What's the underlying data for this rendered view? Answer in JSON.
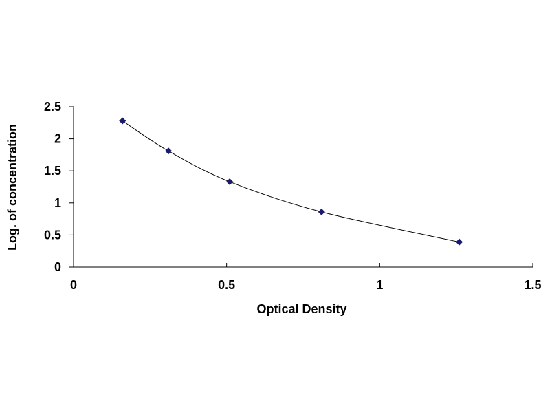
{
  "chart_data": {
    "type": "scatter",
    "title": "",
    "xlabel": "Optical Density",
    "ylabel": "Log. of concentration",
    "xlim": [
      0,
      1.5
    ],
    "ylim": [
      0,
      2.5
    ],
    "x_ticks": [
      0,
      0.5,
      1,
      1.5
    ],
    "x_tick_labels": [
      "0",
      "0.5",
      "1",
      "1.5"
    ],
    "y_ticks": [
      0,
      0.5,
      1,
      1.5,
      2,
      2.5
    ],
    "y_tick_labels": [
      "0",
      "0.5",
      "1",
      "1.5",
      "2",
      "2.5"
    ],
    "grid": false,
    "legend": "none",
    "trendline": "smooth curve through points",
    "series": [
      {
        "x": [
          0.16,
          0.31,
          0.51,
          0.81,
          1.26
        ],
        "y": [
          2.28,
          1.81,
          1.33,
          0.86,
          0.39
        ]
      }
    ],
    "colors": {
      "marker": "#1a1a6e",
      "line": "#000000",
      "axis": "#000000"
    }
  }
}
